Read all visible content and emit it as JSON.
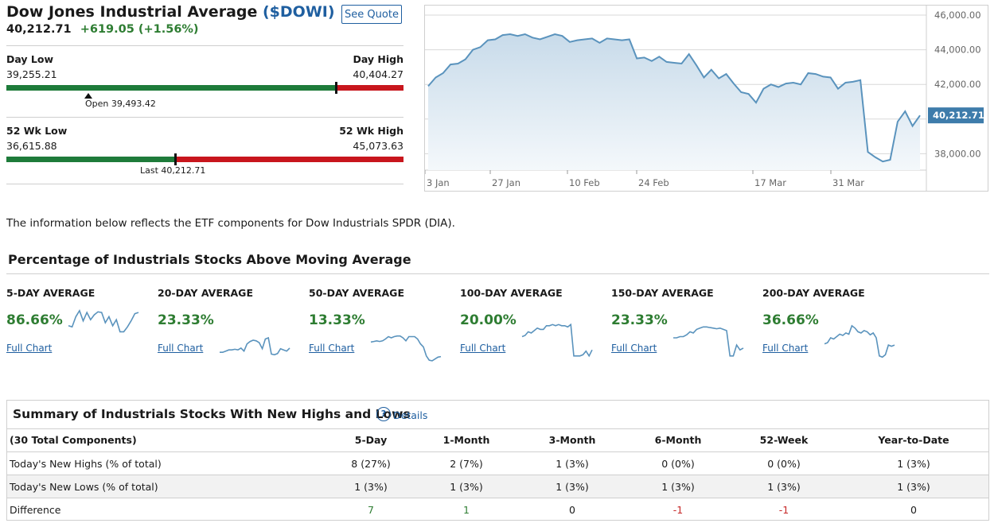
{
  "header": {
    "title": "Dow Jones Industrial Average",
    "symbol": "($DOWI)",
    "price": "40,212.71",
    "change": "+619.05 (+1.56%)",
    "see_quote_label": "See Quote"
  },
  "day_range": {
    "low_label": "Day Low",
    "low_value": "39,255.21",
    "high_label": "Day High",
    "high_value": "40,404.27",
    "marker_label": "Open 39,493.42",
    "current_fraction": 0.83,
    "marker_fraction": 0.206
  },
  "week52_range": {
    "low_label": "52 Wk Low",
    "low_value": "36,615.88",
    "high_label": "52 Wk High",
    "high_value": "45,073.63",
    "marker_label": "Last 40,212.71",
    "current_fraction": 0.425
  },
  "price_chart": {
    "y_ticks": [
      "46,000.00",
      "44,000.00",
      "42,000.00",
      "38,000.00"
    ],
    "x_ticks": [
      "3 Jan",
      "27 Jan",
      "10 Feb",
      "24 Feb",
      "17 Mar",
      "31 Mar"
    ],
    "current_label": "40,212.71",
    "line_color": "#5a93bd",
    "values": [
      41900,
      42400,
      42650,
      43150,
      43200,
      43450,
      44000,
      44150,
      44550,
      44600,
      44850,
      44900,
      44800,
      44900,
      44700,
      44600,
      44750,
      44900,
      44800,
      44450,
      44550,
      44600,
      44650,
      44400,
      44650,
      44600,
      44550,
      44600,
      43500,
      43550,
      43350,
      43600,
      43300,
      43250,
      43200,
      43750,
      43100,
      42400,
      42850,
      42350,
      42600,
      42050,
      41550,
      41450,
      40950,
      41750,
      42000,
      41850,
      42050,
      42100,
      42000,
      42650,
      42600,
      42450,
      42400,
      41750,
      42100,
      42150,
      42250,
      38100,
      37800,
      37550,
      37650,
      39850,
      40450,
      39600,
      40212
    ]
  },
  "etf_note": "The information below reflects the ETF components for Dow Industrials SPDR (DIA).",
  "moving_avg": {
    "title": "Percentage of Industrials Stocks Above Moving Average",
    "link_label": "Full Chart",
    "sparkline_color": "#5a93bd",
    "items": [
      {
        "label": "5-DAY AVERAGE",
        "value": "86.66%",
        "spark": [
          70,
          68,
          85,
          95,
          78,
          92,
          80,
          88,
          93,
          92,
          75,
          85,
          70,
          80,
          60,
          60,
          68,
          78,
          90,
          92
        ]
      },
      {
        "label": "20-DAY AVERAGE",
        "value": "23.33%",
        "spark": [
          26,
          26,
          28,
          30,
          30,
          31,
          30,
          33,
          28,
          40,
          44,
          46,
          45,
          42,
          32,
          48,
          50,
          23,
          22,
          24,
          32,
          30,
          28,
          33
        ]
      },
      {
        "label": "50-DAY AVERAGE",
        "value": "13.33%",
        "spark": [
          43,
          44,
          45,
          44,
          45,
          48,
          52,
          50,
          52,
          53,
          53,
          50,
          45,
          52,
          52,
          52,
          48,
          40,
          35,
          20,
          13,
          12,
          15,
          18,
          19
        ]
      },
      {
        "label": "100-DAY AVERAGE",
        "value": "20.00%",
        "spark": [
          52,
          54,
          60,
          58,
          62,
          66,
          64,
          64,
          70,
          70,
          72,
          70,
          72,
          70,
          70,
          68,
          72,
          20,
          20,
          20,
          22,
          28,
          20,
          30
        ]
      },
      {
        "label": "150-DAY AVERAGE",
        "value": "23.33%",
        "spark": [
          50,
          50,
          52,
          52,
          55,
          60,
          58,
          64,
          66,
          68,
          68,
          67,
          66,
          65,
          66,
          64,
          62,
          20,
          20,
          38,
          30,
          33
        ]
      },
      {
        "label": "200-DAY AVERAGE",
        "value": "36.66%",
        "spark": [
          40,
          42,
          50,
          48,
          52,
          56,
          54,
          58,
          56,
          70,
          66,
          60,
          58,
          62,
          60,
          55,
          58,
          50,
          20,
          18,
          22,
          38,
          36,
          38
        ]
      }
    ]
  },
  "summary": {
    "title": "Summary of Industrials Stocks With New Highs and Lows",
    "details_label": "Details",
    "columns": [
      "(30 Total Components)",
      "5-Day",
      "1-Month",
      "3-Month",
      "6-Month",
      "52-Week",
      "Year-to-Date"
    ],
    "rows": [
      {
        "label": "Today's New Highs (% of total)",
        "cells": [
          "8 (27%)",
          "2 (7%)",
          "1 (3%)",
          "0 (0%)",
          "0 (0%)",
          "1 (3%)"
        ]
      },
      {
        "label": "Today's New Lows (% of total)",
        "cells": [
          "1 (3%)",
          "1 (3%)",
          "1 (3%)",
          "1 (3%)",
          "1 (3%)",
          "1 (3%)"
        ]
      },
      {
        "label": "Difference",
        "cells": [
          "7",
          "1",
          "0",
          "-1",
          "-1",
          "0"
        ]
      }
    ]
  },
  "colors": {
    "positive": "#2e7d32",
    "negative": "#c62828",
    "range_green": "#1e7b3a",
    "range_red": "#c8161d",
    "link": "#1f5fa0"
  }
}
